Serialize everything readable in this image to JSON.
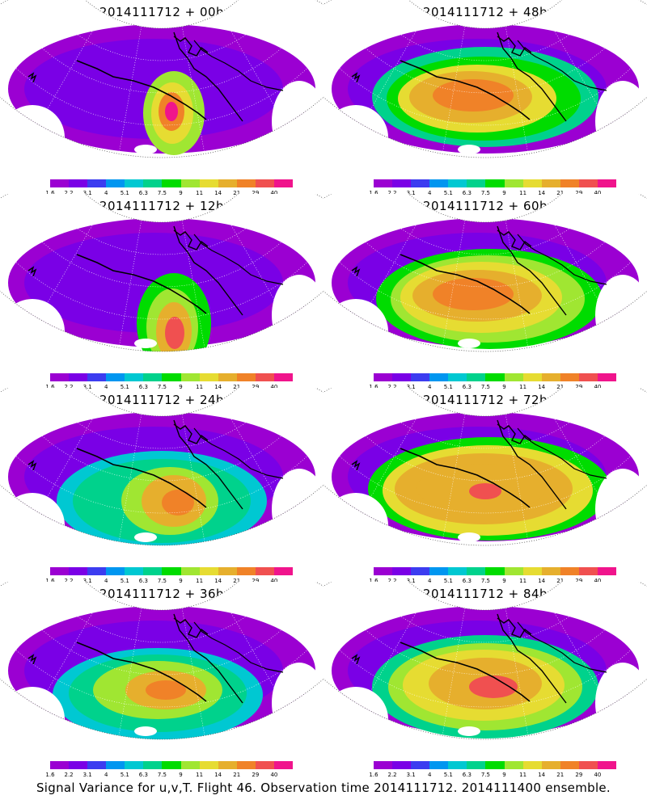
{
  "panels": [
    {
      "title": "2014111712 + 00h"
    },
    {
      "title": "2014111712 + 48h"
    },
    {
      "title": "2014111712 + 12h"
    },
    {
      "title": "2014111712 + 60h"
    },
    {
      "title": "2014111712 + 24h"
    },
    {
      "title": "2014111712 + 72h"
    },
    {
      "title": "2014111712 + 36h"
    },
    {
      "title": "2014111712 + 84h"
    }
  ],
  "colorbar": {
    "labels": [
      "1.6",
      "2.2",
      "3.1",
      "4",
      "5.1",
      "6.3",
      "7.5",
      "9",
      "11",
      "14",
      "21",
      "29",
      "40"
    ],
    "colors": [
      "#9b00d2",
      "#7a00e6",
      "#3c3cf0",
      "#0096f0",
      "#00c8d2",
      "#00d28c",
      "#00dc00",
      "#a0e632",
      "#e6dc32",
      "#e6af2d",
      "#f08228",
      "#f05050",
      "#f0148c"
    ]
  },
  "caption": "Signal Variance for u,v,T. Flight 46. Observation time 2014111712. 2014111400 ensemble."
}
